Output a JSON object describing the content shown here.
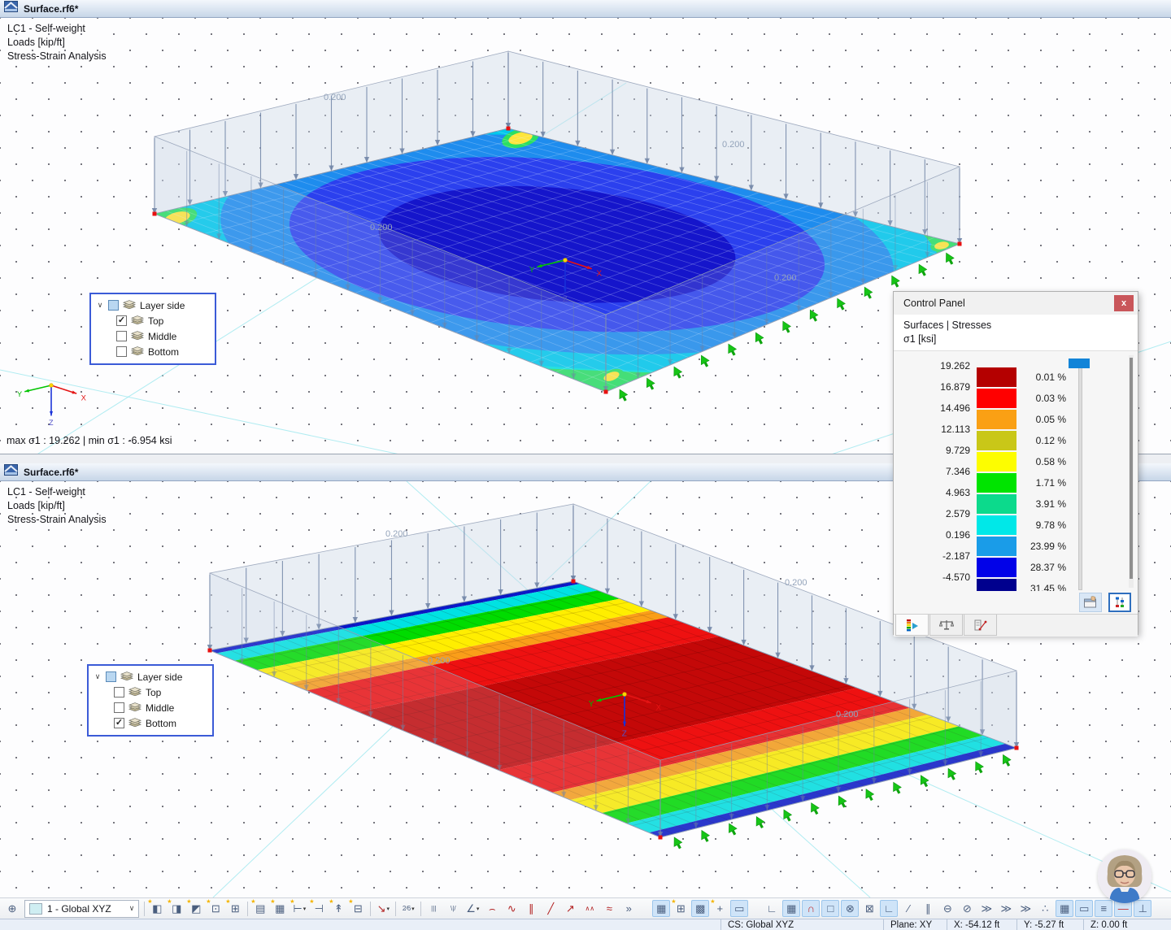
{
  "viewport_top": {
    "title": "Surface.rf6*",
    "info_lines": [
      "LC1 - Self-weight",
      "Loads [kip/ft]",
      "Stress-Strain Analysis"
    ],
    "load_label": "0.200",
    "max_min_text": "max σ1 : 19.262 | min σ1 : -6.954 ksi",
    "axes": {
      "x": "X",
      "y": "Y",
      "z": "Z"
    },
    "layer_panel": {
      "title": "Layer side",
      "items": [
        {
          "label": "Top",
          "checked": true
        },
        {
          "label": "Middle",
          "checked": false
        },
        {
          "label": "Bottom",
          "checked": false
        }
      ]
    }
  },
  "viewport_bottom": {
    "title": "Surface.rf6*",
    "info_lines": [
      "LC1 - Self-weight",
      "Loads [kip/ft]",
      "Stress-Strain Analysis"
    ],
    "load_label": "0.200",
    "axes": {
      "x": "X",
      "y": "Y",
      "z": "Z"
    },
    "layer_panel": {
      "title": "Layer side",
      "items": [
        {
          "label": "Top",
          "checked": false
        },
        {
          "label": "Middle",
          "checked": false
        },
        {
          "label": "Bottom",
          "checked": true
        }
      ]
    }
  },
  "control_panel": {
    "title": "Control Panel",
    "close_label": "x",
    "section_title": "Surfaces | Stresses",
    "quantity_label": "σ1 [ksi]",
    "legend_rows": [
      {
        "value": "19.262",
        "color": "#b40000",
        "percent": "0.01 %"
      },
      {
        "value": "16.879",
        "color": "#ff0000",
        "percent": "0.03 %"
      },
      {
        "value": "14.496",
        "color": "#faa014",
        "percent": "0.05 %"
      },
      {
        "value": "12.113",
        "color": "#c9c718",
        "percent": "0.12 %"
      },
      {
        "value": "9.729",
        "color": "#fdfd00",
        "percent": "0.58 %"
      },
      {
        "value": "7.346",
        "color": "#00e400",
        "percent": "1.71 %"
      },
      {
        "value": "4.963",
        "color": "#0cda8c",
        "percent": "3.91 %"
      },
      {
        "value": "2.579",
        "color": "#00e8e8",
        "percent": "9.78 %"
      },
      {
        "value": "0.196",
        "color": "#1a9ce8",
        "percent": "23.99 %"
      },
      {
        "value": "-2.187",
        "color": "#0202e8",
        "percent": "28.37 %"
      },
      {
        "value": "-4.570",
        "color": "#00008e",
        "percent": "31.45 %"
      }
    ]
  },
  "toolbar": {
    "csys_value": "1 - Global XYZ",
    "items": [
      {
        "t": "icon",
        "name": "workplane-icon",
        "g": "⊕"
      },
      {
        "t": "combo",
        "name": "coordinate-system-select"
      },
      {
        "t": "sep"
      },
      {
        "t": "icon",
        "name": "workplane-xy-icon",
        "g": "◧",
        "star": 1
      },
      {
        "t": "icon",
        "name": "workplane-xz-icon",
        "g": "◨",
        "star": 1
      },
      {
        "t": "icon",
        "name": "workplane-yz-icon",
        "g": "◩",
        "star": 1
      },
      {
        "t": "icon",
        "name": "move-workplane-icon",
        "g": "⊡",
        "star": 1
      },
      {
        "t": "icon",
        "name": "rotate-workplane-icon",
        "g": "⊞",
        "star": 1
      },
      {
        "t": "sep"
      },
      {
        "t": "icon",
        "name": "guide-object-table-icon",
        "g": "▤",
        "star": 1
      },
      {
        "t": "icon",
        "name": "guide-object-remove-icon",
        "g": "▦",
        "star": 1
      },
      {
        "t": "icon",
        "name": "dimension-tool-icon",
        "g": "⊢",
        "star": 1,
        "dd": 1
      },
      {
        "t": "icon",
        "name": "dimension-offset-icon",
        "g": "⊣",
        "star": 1
      },
      {
        "t": "icon",
        "name": "annotation-tool-icon",
        "g": "↟",
        "star": 1
      },
      {
        "t": "icon",
        "name": "clipping-box-icon",
        "g": "⊟",
        "star": 1
      },
      {
        "t": "sep"
      },
      {
        "t": "icon",
        "name": "measure-tool-icon",
        "g": "↘",
        "dd": 1,
        "c": "#b22222"
      },
      {
        "t": "sep"
      },
      {
        "t": "icon",
        "name": "numbering-icon",
        "g": "2⁄6",
        "dd": 1,
        "small": 1
      },
      {
        "t": "sep"
      },
      {
        "t": "icon",
        "name": "vertical-lines-tool-icon",
        "g": "|||",
        "small": 1
      },
      {
        "t": "icon",
        "name": "fan-lines-tool-icon",
        "g": "\\|/",
        "small": 1
      },
      {
        "t": "icon",
        "name": "angle-line-tool-icon",
        "g": "∠",
        "dd": 1
      },
      {
        "t": "icon",
        "name": "arc-tool-icon",
        "g": "⌢",
        "c": "#b22222"
      },
      {
        "t": "icon",
        "name": "spline-tool-icon",
        "g": "∿",
        "c": "#b22222"
      },
      {
        "t": "icon",
        "name": "parallel-line-tool-icon",
        "g": "∥",
        "c": "#b22222"
      },
      {
        "t": "icon",
        "name": "line-tool-icon",
        "g": "╱",
        "c": "#b22222"
      },
      {
        "t": "icon",
        "name": "extend-line-tool-icon",
        "g": "↗",
        "c": "#b22222"
      },
      {
        "t": "icon",
        "name": "polyline-tool-icon",
        "g": "∧∧",
        "small": 1,
        "c": "#b22222"
      },
      {
        "t": "icon",
        "name": "zigzag-tool-icon",
        "g": "≈",
        "c": "#b22222"
      },
      {
        "t": "overflow",
        "name": "toolbar-overflow-button",
        "g": "»"
      },
      {
        "t": "gap"
      },
      {
        "t": "icon",
        "name": "grid-visibility-toggle",
        "g": "▦",
        "on": 1
      },
      {
        "t": "icon",
        "name": "create-grid-icon",
        "g": "⊞",
        "star": 1
      },
      {
        "t": "icon",
        "name": "grid-points-toggle",
        "g": "▩",
        "on": 1
      },
      {
        "t": "icon",
        "name": "create-guideline-icon",
        "g": "+",
        "star": 1
      },
      {
        "t": "icon",
        "name": "work-frame-toggle",
        "g": "▭",
        "on": 1
      },
      {
        "t": "gap"
      },
      {
        "t": "icon",
        "name": "corner-axes-icon",
        "g": "∟"
      },
      {
        "t": "icon",
        "name": "snap-grid-toggle",
        "g": "▦",
        "on": 1
      },
      {
        "t": "icon",
        "name": "snap-magnet-toggle",
        "g": "∩",
        "on": 1,
        "c": "#c03030"
      },
      {
        "t": "icon",
        "name": "snap-endpoint-toggle",
        "g": "□",
        "on": 1
      },
      {
        "t": "icon",
        "name": "snap-center-toggle",
        "g": "⊗",
        "on": 1
      },
      {
        "t": "icon",
        "name": "snap-intersection-icon",
        "g": "⊠"
      },
      {
        "t": "icon",
        "name": "ortho-snap-toggle",
        "g": "∟",
        "on": 1
      },
      {
        "t": "icon",
        "name": "snap-line-icon",
        "g": "∕"
      },
      {
        "t": "icon",
        "name": "snap-parallel-icon",
        "g": "∥"
      },
      {
        "t": "icon",
        "name": "snap-tangent-icon",
        "g": "⊖"
      },
      {
        "t": "icon",
        "name": "snap-perpendicular-icon",
        "g": "⊘"
      },
      {
        "t": "icon",
        "name": "snap-extension-icon",
        "g": "≫"
      },
      {
        "t": "icon",
        "name": "snap-angle-icon",
        "g": "≫"
      },
      {
        "t": "icon",
        "name": "snap-intersect2-icon",
        "g": "≫"
      },
      {
        "t": "icon",
        "name": "snap-points-icon",
        "g": "∴"
      },
      {
        "t": "icon",
        "name": "display-grid-toggle",
        "g": "▦",
        "on": 1
      },
      {
        "t": "icon",
        "name": "selection-mode-toggle",
        "g": "▭",
        "on": 1
      },
      {
        "t": "icon",
        "name": "layers-display-toggle",
        "g": "≡",
        "on": 1
      },
      {
        "t": "icon",
        "name": "result-line-toggle",
        "g": "—",
        "on": 1,
        "c": "#c03030"
      },
      {
        "t": "icon",
        "name": "supports-display-toggle",
        "g": "⊥",
        "on": 1
      }
    ]
  },
  "statusbar": {
    "cs": "CS: Global XYZ",
    "plane": "Plane: XY",
    "x": "X: -54.12 ft",
    "y": "Y: -5.27 ft",
    "z": "Z: 0.00 ft"
  }
}
